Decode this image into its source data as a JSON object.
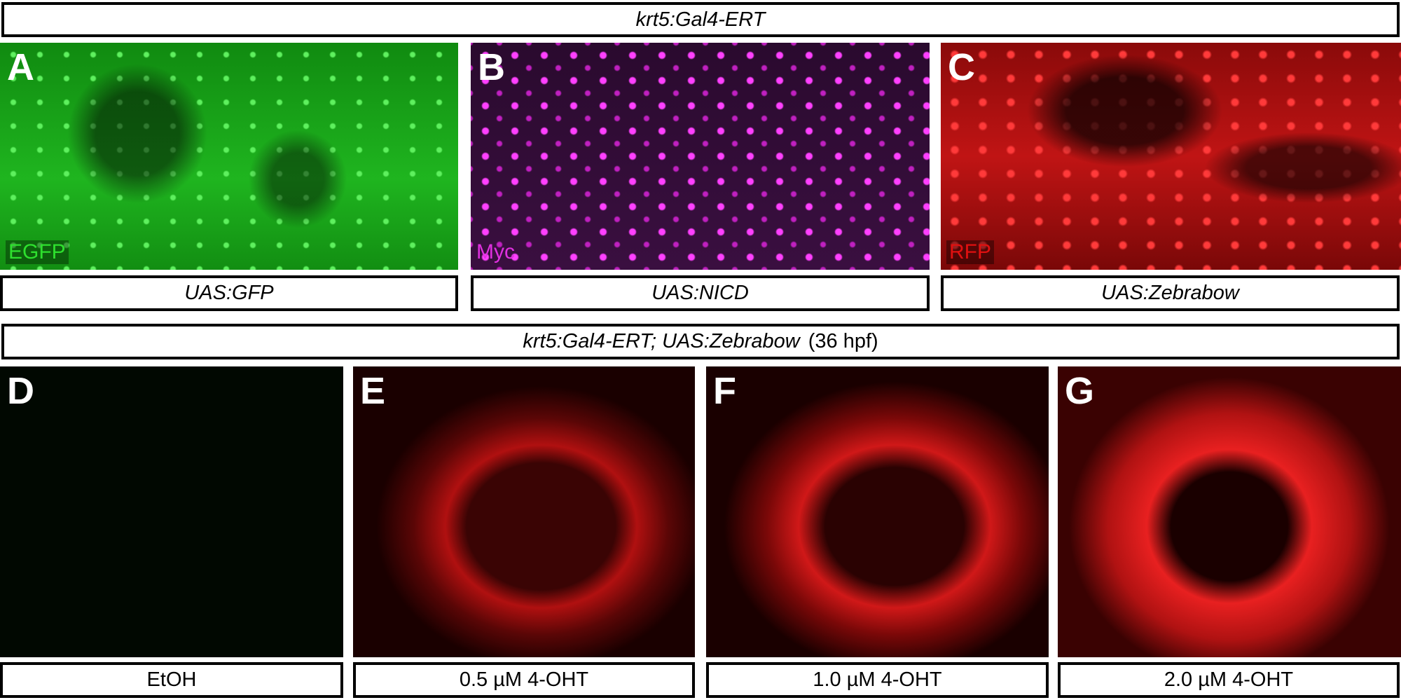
{
  "header_top": "krt5:Gal4-ERT",
  "panels_top": [
    {
      "letter": "A",
      "channel": "EGFP",
      "label": "UAS:GFP"
    },
    {
      "letter": "B",
      "channel": "Myc",
      "label": "UAS:NICD"
    },
    {
      "letter": "C",
      "channel": "RFP",
      "label": "UAS:Zebrabow"
    }
  ],
  "header_bottom": {
    "genotype": "krt5:Gal4-ERT; UAS:Zebrabow",
    "stage": "(36 hpf)"
  },
  "panels_bottom": [
    {
      "letter": "D",
      "label": "EtOH"
    },
    {
      "letter": "E",
      "label": "0.5 µM 4-OHT"
    },
    {
      "letter": "F",
      "label": "1.0 µM 4-OHT"
    },
    {
      "letter": "G",
      "label": "2.0 µM 4-OHT"
    }
  ]
}
